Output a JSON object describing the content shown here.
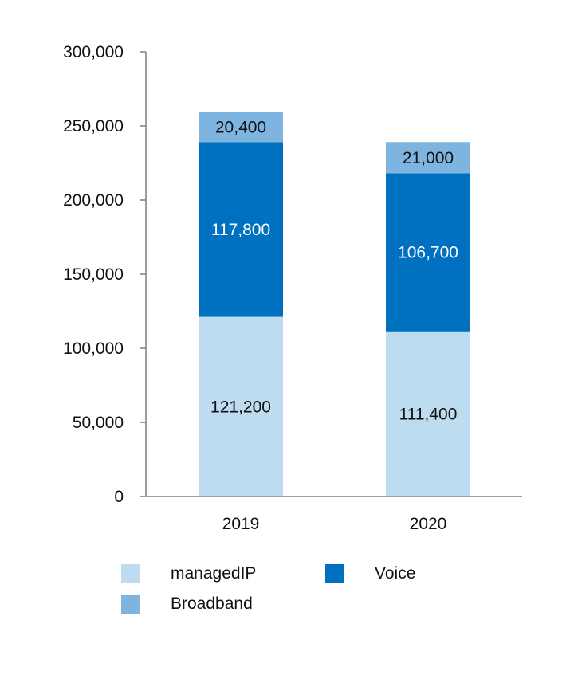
{
  "chart_data": {
    "type": "bar",
    "stacked": true,
    "categories": [
      "2019",
      "2020"
    ],
    "series": [
      {
        "name": "managedIP",
        "values": [
          121200,
          111400
        ],
        "color": "#bddcf0",
        "label_color": "#111111"
      },
      {
        "name": "Voice",
        "values": [
          117800,
          106700
        ],
        "color": "#0070c0",
        "label_color": "#ffffff"
      },
      {
        "name": "Broadband",
        "values": [
          20400,
          21000
        ],
        "color": "#7db5e0",
        "label_color": "#111111"
      }
    ],
    "data_labels": [
      [
        "121,200",
        "111,400"
      ],
      [
        "117,800",
        "106,700"
      ],
      [
        "20,400",
        "21,000"
      ]
    ],
    "y_ticks": [
      "0",
      "50,000",
      "100,000",
      "150,000",
      "200,000",
      "250,000",
      "300,000"
    ],
    "ylim": [
      0,
      300000
    ],
    "title": "",
    "xlabel": "",
    "ylabel": "",
    "grid": false,
    "legend_position": "bottom"
  },
  "legend": {
    "items": [
      {
        "label": "managedIP",
        "color": "#bddcf0"
      },
      {
        "label": "Voice",
        "color": "#0070c0"
      },
      {
        "label": "Broadband",
        "color": "#7db5e0"
      }
    ]
  }
}
